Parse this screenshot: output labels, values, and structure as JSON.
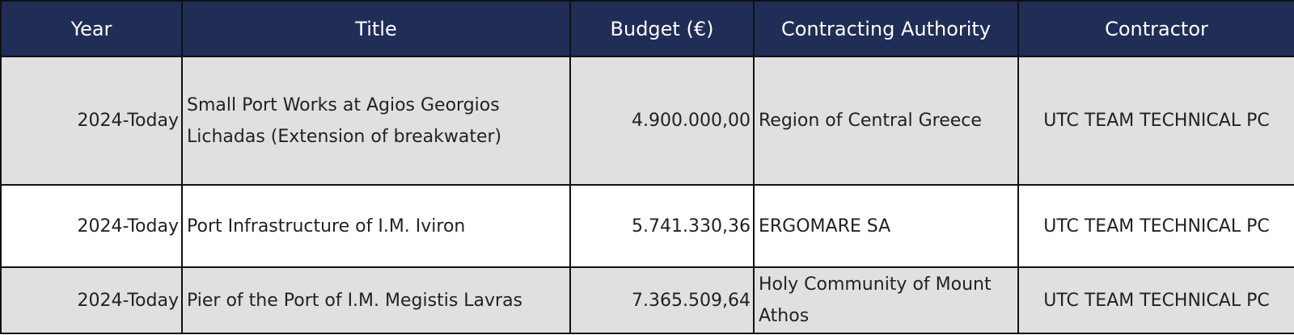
{
  "headers": {
    "year": "Year",
    "title": "Title",
    "budget": "Budget (€)",
    "authority": "Contracting Authority",
    "contractor": "Contractor"
  },
  "rows": [
    {
      "year": "2024-Today",
      "title": "Small Port Works at Agios Georgios Lichadas (Extension of breakwater)",
      "budget": "4.900.000,00",
      "authority": "Region of Central Greece",
      "contractor": "UTC TEAM TECHNICAL PC"
    },
    {
      "year": "2024-Today",
      "title": "Port Infrastructure of I.M. Iviron",
      "budget": "5.741.330,36",
      "authority": "ERGOMARE SA",
      "contractor": "UTC TEAM TECHNICAL PC"
    },
    {
      "year": "2024-Today",
      "title": "Pier of the Port of I.M. Megistis Lavras",
      "budget": "7.365.509,64",
      "authority": "Holy Community of Mount Athos",
      "contractor": "UTC TEAM TECHNICAL PC"
    }
  ],
  "colors": {
    "header_bg": "#1f2d57",
    "header_text": "#ffffff",
    "row_shaded": "#e0e0e0",
    "row_plain": "#ffffff",
    "border": "#111111"
  }
}
